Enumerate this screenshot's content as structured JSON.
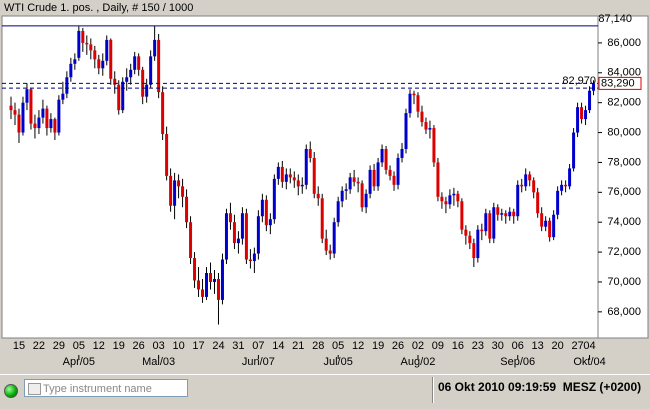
{
  "header": {
    "title": "WTI Crude 1. pos. , Daily, # 150 / 1000"
  },
  "chart_data": {
    "type": "candlestick",
    "up_color": "#0000cc",
    "down_color": "#dd0000",
    "ylim": [
      66250,
      87800
    ],
    "yticks": [
      {
        "value": 68000,
        "label": "68,000"
      },
      {
        "value": 70000,
        "label": "70,000"
      },
      {
        "value": 72000,
        "label": "72,000"
      },
      {
        "value": 74000,
        "label": "74,000"
      },
      {
        "value": 76000,
        "label": "76,000"
      },
      {
        "value": 78000,
        "label": "78,000"
      },
      {
        "value": 80000,
        "label": "80,000"
      },
      {
        "value": 82000,
        "label": "82,000"
      },
      {
        "value": 84000,
        "label": "84,000"
      },
      {
        "value": 86000,
        "label": "86,000"
      }
    ],
    "levels": [
      {
        "value": 87140,
        "label": "87,140"
      },
      {
        "value": 82970,
        "label": "82,970"
      }
    ],
    "last_price": {
      "value": 83290,
      "label": "83,290"
    },
    "categories": [
      null,
      null,
      "15",
      null,
      null,
      null,
      null,
      "22",
      null,
      null,
      null,
      null,
      "29",
      null,
      null,
      null,
      null,
      "05",
      null,
      null,
      null,
      null,
      "12",
      null,
      null,
      null,
      null,
      "19",
      null,
      null,
      null,
      null,
      "26",
      null,
      null,
      null,
      null,
      "03",
      null,
      null,
      null,
      null,
      "10",
      null,
      null,
      null,
      null,
      "17",
      null,
      null,
      null,
      null,
      "24",
      null,
      null,
      null,
      null,
      "31",
      null,
      null,
      null,
      null,
      "07",
      null,
      null,
      null,
      null,
      "14",
      null,
      null,
      null,
      null,
      "21",
      null,
      null,
      null,
      null,
      "28",
      null,
      null,
      null,
      null,
      "05",
      null,
      null,
      null,
      null,
      "12",
      null,
      null,
      null,
      null,
      "19",
      null,
      null,
      null,
      null,
      "26",
      null,
      null,
      null,
      null,
      "02",
      null,
      null,
      null,
      null,
      "09",
      null,
      null,
      null,
      null,
      "16",
      null,
      null,
      null,
      null,
      "23",
      null,
      null,
      null,
      null,
      "30",
      null,
      null,
      null,
      null,
      "06",
      null,
      null,
      null,
      null,
      "13",
      null,
      null,
      null,
      null,
      "20",
      null,
      null,
      null,
      null,
      "27",
      null,
      null,
      "04",
      null
    ],
    "categories2": [
      null,
      null,
      null,
      null,
      null,
      null,
      null,
      null,
      null,
      null,
      null,
      null,
      null,
      null,
      null,
      null,
      null,
      "Apr/05",
      null,
      null,
      null,
      null,
      null,
      null,
      null,
      null,
      null,
      null,
      null,
      null,
      null,
      null,
      null,
      null,
      null,
      null,
      null,
      "Mai/03",
      null,
      null,
      null,
      null,
      null,
      null,
      null,
      null,
      null,
      null,
      null,
      null,
      null,
      null,
      null,
      null,
      null,
      null,
      null,
      null,
      null,
      null,
      null,
      null,
      "Jun/07",
      null,
      null,
      null,
      null,
      null,
      null,
      null,
      null,
      null,
      null,
      null,
      null,
      null,
      null,
      null,
      null,
      null,
      null,
      null,
      "Jul/05",
      null,
      null,
      null,
      null,
      null,
      null,
      null,
      null,
      null,
      null,
      null,
      null,
      null,
      null,
      null,
      null,
      null,
      null,
      null,
      "Aug/02",
      null,
      null,
      null,
      null,
      null,
      null,
      null,
      null,
      null,
      null,
      null,
      null,
      null,
      null,
      null,
      null,
      null,
      null,
      null,
      null,
      null,
      null,
      null,
      null,
      "Sep/06",
      null,
      null,
      null,
      null,
      null,
      null,
      null,
      null,
      null,
      null,
      null,
      null,
      null,
      null,
      null,
      null,
      null,
      "Okt/04",
      null
    ],
    "ohlc": [
      [
        81800,
        82400,
        80900,
        81500
      ],
      [
        81500,
        82000,
        80500,
        81200
      ],
      [
        81200,
        81600,
        79300,
        80000
      ],
      [
        80000,
        82400,
        79800,
        82000
      ],
      [
        82000,
        83300,
        81500,
        82900
      ],
      [
        82900,
        83000,
        80200,
        80600
      ],
      [
        80600,
        81200,
        79600,
        80300
      ],
      [
        80300,
        81500,
        79900,
        81000
      ],
      [
        81000,
        82200,
        80600,
        81600
      ],
      [
        81600,
        81800,
        79800,
        80300
      ],
      [
        80300,
        81300,
        80000,
        80900
      ],
      [
        80900,
        81000,
        79500,
        80000
      ],
      [
        80000,
        82500,
        79800,
        82200
      ],
      [
        82200,
        83400,
        81900,
        82600
      ],
      [
        82600,
        84100,
        82300,
        83700
      ],
      [
        83700,
        85000,
        83400,
        84600
      ],
      [
        84600,
        85300,
        84200,
        84900
      ],
      [
        85000,
        87100,
        84800,
        86800
      ],
      [
        86800,
        87000,
        85400,
        86000
      ],
      [
        86000,
        86500,
        85200,
        85900
      ],
      [
        85900,
        86300,
        84900,
        85500
      ],
      [
        85500,
        85800,
        84300,
        84900
      ],
      [
        84900,
        85200,
        83900,
        84300
      ],
      [
        84300,
        85300,
        83800,
        84800
      ],
      [
        84800,
        86500,
        84500,
        86200
      ],
      [
        86200,
        86300,
        83200,
        83600
      ],
      [
        83600,
        84100,
        82600,
        83200
      ],
      [
        83200,
        83500,
        81200,
        81500
      ],
      [
        81500,
        83700,
        81300,
        83400
      ],
      [
        83400,
        84300,
        82800,
        83700
      ],
      [
        83700,
        84600,
        83200,
        84200
      ],
      [
        84200,
        85400,
        83900,
        85100
      ],
      [
        85100,
        85300,
        83800,
        84200
      ],
      [
        84200,
        84400,
        81900,
        82400
      ],
      [
        82400,
        83600,
        82000,
        83200
      ],
      [
        83200,
        85500,
        83000,
        85100
      ],
      [
        85100,
        87140,
        84800,
        86200
      ],
      [
        86200,
        86600,
        82300,
        82700
      ],
      [
        82700,
        83100,
        79500,
        79900
      ],
      [
        79900,
        80400,
        76800,
        77100
      ],
      [
        77100,
        77600,
        74700,
        75100
      ],
      [
        75100,
        77300,
        74200,
        76800
      ],
      [
        76800,
        77200,
        75600,
        76400
      ],
      [
        76400,
        76900,
        75000,
        75700
      ],
      [
        75700,
        76200,
        73600,
        74000
      ],
      [
        74000,
        74400,
        71200,
        71600
      ],
      [
        71600,
        72000,
        69600,
        70100
      ],
      [
        70100,
        71000,
        69000,
        69500
      ],
      [
        69500,
        70200,
        68600,
        69000
      ],
      [
        69000,
        71000,
        68800,
        70600
      ],
      [
        70600,
        71300,
        69500,
        70000
      ],
      [
        70000,
        70800,
        69200,
        70200
      ],
      [
        70200,
        70600,
        67150,
        68800
      ],
      [
        68800,
        71900,
        68500,
        71500
      ],
      [
        71500,
        74900,
        71200,
        74600
      ],
      [
        74600,
        75300,
        73500,
        74000
      ],
      [
        74000,
        74500,
        72200,
        72600
      ],
      [
        72600,
        73400,
        71900,
        72900
      ],
      [
        72900,
        75000,
        72500,
        74600
      ],
      [
        74600,
        74900,
        71200,
        71500
      ],
      [
        71500,
        72200,
        70900,
        71400
      ],
      [
        71400,
        72300,
        70600,
        71900
      ],
      [
        71900,
        74800,
        71500,
        74400
      ],
      [
        74400,
        75900,
        74000,
        75500
      ],
      [
        75500,
        75800,
        73400,
        73800
      ],
      [
        73800,
        74600,
        73200,
        74200
      ],
      [
        74200,
        77200,
        73900,
        76900
      ],
      [
        76900,
        78000,
        76500,
        77700
      ],
      [
        77700,
        78100,
        76300,
        76700
      ],
      [
        76700,
        77600,
        76200,
        77200
      ],
      [
        77200,
        77600,
        76600,
        77000
      ],
      [
        77000,
        77400,
        76300,
        76800
      ],
      [
        76800,
        77200,
        75800,
        76400
      ],
      [
        76400,
        77000,
        75900,
        76500
      ],
      [
        76500,
        79200,
        76200,
        78900
      ],
      [
        78900,
        79400,
        78000,
        78300
      ],
      [
        78300,
        78700,
        75600,
        75900
      ],
      [
        75900,
        76400,
        75100,
        75600
      ],
      [
        75600,
        75900,
        72600,
        72900
      ],
      [
        72900,
        73500,
        71800,
        72100
      ],
      [
        72100,
        72500,
        71500,
        71900
      ],
      [
        71900,
        74300,
        71600,
        74000
      ],
      [
        74000,
        75700,
        73700,
        75400
      ],
      [
        75400,
        76400,
        75000,
        76100
      ],
      [
        76100,
        76600,
        75500,
        76200
      ],
      [
        76200,
        77300,
        75900,
        77000
      ],
      [
        77000,
        77500,
        76400,
        76700
      ],
      [
        76700,
        77000,
        76000,
        76600
      ],
      [
        76600,
        76800,
        74700,
        75000
      ],
      [
        75000,
        76200,
        74600,
        75900
      ],
      [
        75900,
        77800,
        75600,
        77500
      ],
      [
        77500,
        77900,
        76100,
        76400
      ],
      [
        76400,
        78300,
        76100,
        78000
      ],
      [
        78000,
        79200,
        77700,
        78900
      ],
      [
        78900,
        79100,
        77200,
        77500
      ],
      [
        77500,
        77800,
        76800,
        77100
      ],
      [
        77100,
        77400,
        76100,
        76500
      ],
      [
        76500,
        78600,
        76200,
        78300
      ],
      [
        78300,
        79300,
        78000,
        78900
      ],
      [
        78900,
        81600,
        78600,
        81300
      ],
      [
        81300,
        82900,
        81000,
        82600
      ],
      [
        82600,
        82800,
        81900,
        82500
      ],
      [
        82500,
        82700,
        81000,
        81400
      ],
      [
        81400,
        81800,
        80400,
        80700
      ],
      [
        80700,
        81000,
        79900,
        80200
      ],
      [
        80200,
        80800,
        79600,
        80300
      ],
      [
        80300,
        80500,
        77700,
        78000
      ],
      [
        78000,
        78300,
        75400,
        75700
      ],
      [
        75700,
        76000,
        74900,
        75400
      ],
      [
        75400,
        75700,
        74600,
        75200
      ],
      [
        75200,
        76200,
        74900,
        75800
      ],
      [
        75800,
        76300,
        75100,
        75900
      ],
      [
        75900,
        76100,
        75000,
        75400
      ],
      [
        75400,
        75600,
        73200,
        73500
      ],
      [
        73500,
        73800,
        72500,
        73100
      ],
      [
        73100,
        73400,
        72200,
        72600
      ],
      [
        72600,
        72900,
        71000,
        71600
      ],
      [
        71600,
        73800,
        71300,
        73500
      ],
      [
        73500,
        73900,
        72800,
        73400
      ],
      [
        73400,
        74900,
        73100,
        74600
      ],
      [
        74600,
        74800,
        72600,
        72900
      ],
      [
        72900,
        75300,
        72600,
        75000
      ],
      [
        75000,
        75200,
        74100,
        74500
      ],
      [
        74500,
        74900,
        74100,
        74600
      ],
      [
        74600,
        74800,
        73900,
        74400
      ],
      [
        74400,
        75000,
        74100,
        74700
      ],
      [
        74700,
        74900,
        73900,
        74400
      ],
      [
        74400,
        76800,
        74100,
        76500
      ],
      [
        76500,
        76900,
        76000,
        76400
      ],
      [
        76400,
        77600,
        76100,
        77200
      ],
      [
        77200,
        77400,
        76400,
        76800
      ],
      [
        76800,
        77000,
        75600,
        76000
      ],
      [
        76000,
        76300,
        74300,
        74600
      ],
      [
        74600,
        75000,
        73400,
        73700
      ],
      [
        73700,
        74400,
        73400,
        74100
      ],
      [
        74100,
        74300,
        72700,
        73000
      ],
      [
        73000,
        74800,
        72800,
        74500
      ],
      [
        74500,
        76400,
        74200,
        76100
      ],
      [
        76100,
        76800,
        75800,
        76500
      ],
      [
        76500,
        76800,
        76000,
        76400
      ],
      [
        76400,
        77900,
        76200,
        77600
      ],
      [
        77600,
        80300,
        77400,
        80000
      ],
      [
        80000,
        82000,
        79700,
        81700
      ],
      [
        81700,
        82000,
        80600,
        80900
      ],
      [
        80900,
        81800,
        80500,
        81500
      ],
      [
        81500,
        83100,
        81300,
        82800
      ],
      [
        82800,
        83500,
        82500,
        83290
      ]
    ]
  },
  "toolbar": {
    "search_placeholder": "Type instrument name",
    "datetime": "06 Okt 2010 09:19:59",
    "timezone": "MESZ (+0200)"
  }
}
